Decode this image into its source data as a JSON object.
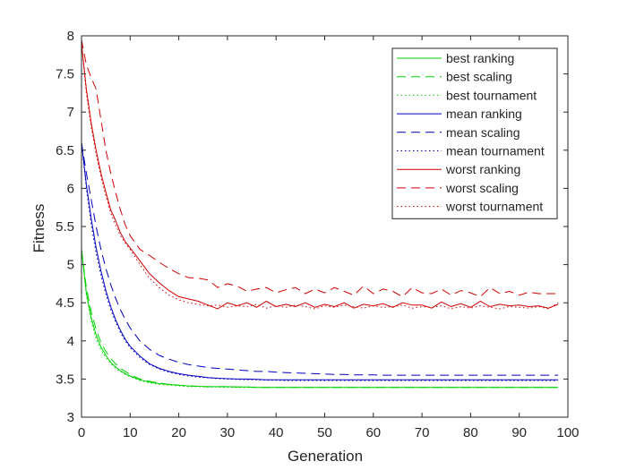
{
  "chart_data": {
    "type": "line",
    "xlabel": "Generation",
    "ylabel": "Fitness",
    "xlim": [
      0,
      100
    ],
    "ylim": [
      3,
      8
    ],
    "xticks": [
      0,
      10,
      20,
      30,
      40,
      50,
      60,
      70,
      80,
      90,
      100
    ],
    "yticks": [
      3,
      3.5,
      4,
      4.5,
      5,
      5.5,
      6,
      6.5,
      7,
      7.5,
      8
    ],
    "legend_position": "top-right",
    "grid": false,
    "x": [
      0,
      1,
      2,
      3,
      4,
      5,
      6,
      7,
      8,
      9,
      10,
      12,
      14,
      16,
      18,
      20,
      22,
      24,
      26,
      28,
      30,
      32,
      34,
      36,
      38,
      40,
      42,
      44,
      46,
      48,
      50,
      52,
      54,
      56,
      58,
      60,
      62,
      64,
      66,
      68,
      70,
      72,
      74,
      76,
      78,
      80,
      82,
      84,
      86,
      88,
      90,
      92,
      94,
      96,
      98
    ],
    "series": [
      {
        "name": "best ranking",
        "color": "#00d000",
        "dash": "solid",
        "values": [
          5.2,
          4.63,
          4.3,
          4.08,
          3.92,
          3.81,
          3.72,
          3.66,
          3.61,
          3.57,
          3.54,
          3.49,
          3.46,
          3.44,
          3.43,
          3.42,
          3.41,
          3.405,
          3.4,
          3.4,
          3.4,
          3.395,
          3.395,
          3.39,
          3.39,
          3.39,
          3.39,
          3.39,
          3.39,
          3.39,
          3.39,
          3.39,
          3.39,
          3.39,
          3.39,
          3.39,
          3.39,
          3.39,
          3.39,
          3.39,
          3.39,
          3.39,
          3.39,
          3.39,
          3.39,
          3.39,
          3.39,
          3.39,
          3.39,
          3.39,
          3.39,
          3.39,
          3.39,
          3.39,
          3.39
        ]
      },
      {
        "name": "best scaling",
        "color": "#00d000",
        "dash": "dashed",
        "values": [
          5.2,
          4.7,
          4.38,
          4.15,
          3.98,
          3.86,
          3.77,
          3.7,
          3.64,
          3.6,
          3.56,
          3.5,
          3.47,
          3.45,
          3.43,
          3.42,
          3.41,
          3.405,
          3.4,
          3.4,
          3.4,
          3.395,
          3.395,
          3.39,
          3.39,
          3.39,
          3.39,
          3.39,
          3.39,
          3.39,
          3.39,
          3.39,
          3.39,
          3.39,
          3.39,
          3.39,
          3.39,
          3.39,
          3.39,
          3.39,
          3.39,
          3.39,
          3.39,
          3.39,
          3.39,
          3.39,
          3.39,
          3.39,
          3.39,
          3.39,
          3.39,
          3.39,
          3.39,
          3.39,
          3.39
        ]
      },
      {
        "name": "best tournament",
        "color": "#00d000",
        "dash": "dotted",
        "values": [
          5.2,
          4.6,
          4.25,
          4.03,
          3.88,
          3.78,
          3.7,
          3.64,
          3.6,
          3.56,
          3.53,
          3.48,
          3.45,
          3.43,
          3.42,
          3.41,
          3.4,
          3.4,
          3.395,
          3.395,
          3.39,
          3.39,
          3.39,
          3.39,
          3.39,
          3.39,
          3.39,
          3.39,
          3.39,
          3.39,
          3.39,
          3.39,
          3.39,
          3.39,
          3.39,
          3.39,
          3.39,
          3.39,
          3.39,
          3.39,
          3.39,
          3.39,
          3.39,
          3.39,
          3.39,
          3.39,
          3.39,
          3.39,
          3.39,
          3.39,
          3.39,
          3.39,
          3.39,
          3.39,
          3.39
        ]
      },
      {
        "name": "mean ranking",
        "color": "#0000c0",
        "dash": "solid",
        "values": [
          6.6,
          6.05,
          5.6,
          5.22,
          4.92,
          4.66,
          4.45,
          4.28,
          4.14,
          4.02,
          3.93,
          3.8,
          3.7,
          3.64,
          3.6,
          3.57,
          3.55,
          3.535,
          3.52,
          3.51,
          3.505,
          3.5,
          3.5,
          3.495,
          3.49,
          3.49,
          3.49,
          3.49,
          3.49,
          3.49,
          3.49,
          3.49,
          3.49,
          3.49,
          3.49,
          3.49,
          3.49,
          3.49,
          3.49,
          3.49,
          3.49,
          3.49,
          3.49,
          3.49,
          3.49,
          3.49,
          3.49,
          3.49,
          3.49,
          3.49,
          3.49,
          3.49,
          3.49,
          3.49,
          3.49
        ]
      },
      {
        "name": "mean scaling",
        "color": "#0000c0",
        "dash": "dashed",
        "values": [
          6.6,
          6.2,
          5.85,
          5.5,
          5.2,
          4.95,
          4.74,
          4.56,
          4.41,
          4.28,
          4.17,
          4.0,
          3.89,
          3.81,
          3.76,
          3.72,
          3.69,
          3.67,
          3.65,
          3.64,
          3.63,
          3.62,
          3.61,
          3.6,
          3.6,
          3.59,
          3.585,
          3.58,
          3.575,
          3.57,
          3.565,
          3.56,
          3.56,
          3.555,
          3.555,
          3.555,
          3.55,
          3.55,
          3.55,
          3.55,
          3.55,
          3.55,
          3.55,
          3.55,
          3.55,
          3.55,
          3.55,
          3.55,
          3.55,
          3.55,
          3.55,
          3.55,
          3.55,
          3.55,
          3.55
        ]
      },
      {
        "name": "mean tournament",
        "color": "#0000c0",
        "dash": "dotted",
        "values": [
          6.6,
          6.0,
          5.52,
          5.15,
          4.86,
          4.61,
          4.41,
          4.25,
          4.11,
          4.0,
          3.91,
          3.78,
          3.69,
          3.63,
          3.59,
          3.56,
          3.54,
          3.525,
          3.515,
          3.505,
          3.5,
          3.495,
          3.49,
          3.49,
          3.485,
          3.485,
          3.48,
          3.48,
          3.48,
          3.48,
          3.48,
          3.48,
          3.48,
          3.48,
          3.48,
          3.48,
          3.48,
          3.48,
          3.48,
          3.48,
          3.48,
          3.48,
          3.48,
          3.48,
          3.48,
          3.48,
          3.48,
          3.48,
          3.48,
          3.48,
          3.48,
          3.48,
          3.48,
          3.48,
          3.48
        ]
      },
      {
        "name": "worst ranking",
        "color": "#d00000",
        "dash": "solid",
        "values": [
          7.9,
          7.3,
          6.85,
          6.5,
          6.2,
          5.95,
          5.72,
          5.58,
          5.42,
          5.3,
          5.22,
          5.05,
          4.88,
          4.76,
          4.66,
          4.58,
          4.55,
          4.52,
          4.47,
          4.42,
          4.5,
          4.46,
          4.5,
          4.44,
          4.52,
          4.45,
          4.48,
          4.45,
          4.5,
          4.44,
          4.48,
          4.45,
          4.5,
          4.43,
          4.48,
          4.46,
          4.49,
          4.44,
          4.5,
          4.47,
          4.47,
          4.43,
          4.51,
          4.45,
          4.49,
          4.44,
          4.52,
          4.45,
          4.48,
          4.46,
          4.47,
          4.45,
          4.46,
          4.43,
          4.48
        ]
      },
      {
        "name": "worst scaling",
        "color": "#d00000",
        "dash": "dashed",
        "values": [
          7.95,
          7.62,
          7.45,
          7.3,
          6.9,
          6.5,
          6.2,
          5.95,
          5.72,
          5.52,
          5.38,
          5.2,
          5.12,
          5.03,
          4.95,
          4.88,
          4.83,
          4.82,
          4.8,
          4.7,
          4.75,
          4.72,
          4.65,
          4.68,
          4.7,
          4.63,
          4.67,
          4.7,
          4.62,
          4.68,
          4.63,
          4.7,
          4.65,
          4.6,
          4.72,
          4.62,
          4.68,
          4.65,
          4.58,
          4.7,
          4.63,
          4.62,
          4.68,
          4.6,
          4.66,
          4.63,
          4.58,
          4.7,
          4.62,
          4.65,
          4.6,
          4.64,
          4.62,
          4.62,
          4.62
        ]
      },
      {
        "name": "worst tournament",
        "color": "#d00000",
        "dash": "dotted",
        "values": [
          7.9,
          7.25,
          6.8,
          6.45,
          6.15,
          5.9,
          5.68,
          5.52,
          5.38,
          5.28,
          5.2,
          5.0,
          4.82,
          4.7,
          4.6,
          4.54,
          4.5,
          4.48,
          4.46,
          4.47,
          4.44,
          4.46,
          4.45,
          4.48,
          4.43,
          4.46,
          4.44,
          4.47,
          4.45,
          4.42,
          4.46,
          4.44,
          4.47,
          4.45,
          4.43,
          4.46,
          4.44,
          4.45,
          4.47,
          4.43,
          4.45,
          4.44,
          4.46,
          4.42,
          4.45,
          4.43,
          4.46,
          4.44,
          4.42,
          4.45,
          4.44,
          4.43,
          4.45,
          4.42,
          4.5
        ]
      }
    ]
  }
}
